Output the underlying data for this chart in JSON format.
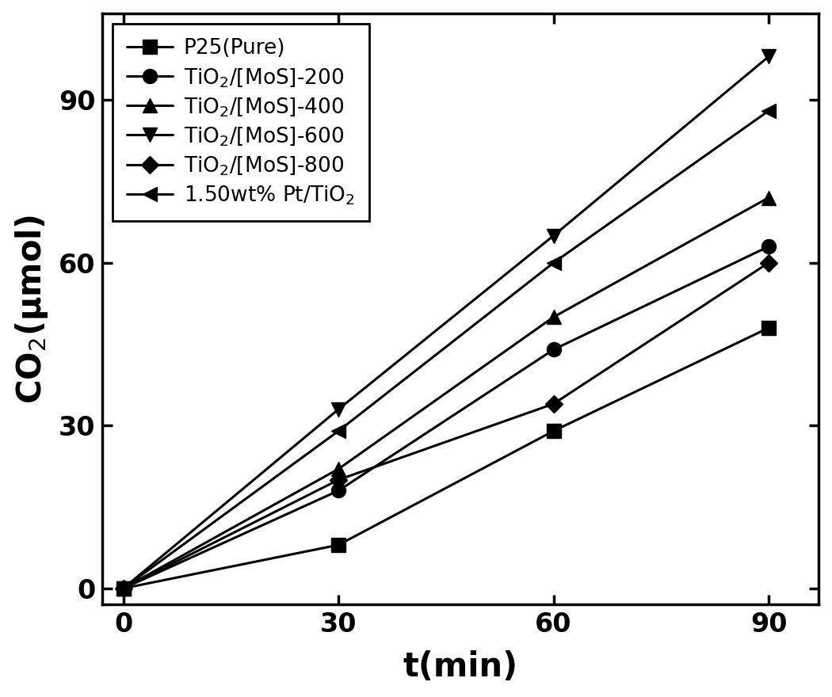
{
  "x": [
    0,
    30,
    60,
    90
  ],
  "series": [
    {
      "label": "P25(Pure)",
      "y": [
        0,
        8,
        29,
        48
      ],
      "marker": "s",
      "markersize": 13
    },
    {
      "label": "TiO$_2$/[MoS]-200",
      "y": [
        0,
        18,
        44,
        63
      ],
      "marker": "o",
      "markersize": 13
    },
    {
      "label": "TiO$_2$/[MoS]-400",
      "y": [
        0,
        22,
        50,
        72
      ],
      "marker": "^",
      "markersize": 13
    },
    {
      "label": "TiO$_2$/[MoS]-600",
      "y": [
        0,
        33,
        65,
        98
      ],
      "marker": "v",
      "markersize": 13
    },
    {
      "label": "TiO$_2$/[MoS]-800",
      "y": [
        0,
        20,
        34,
        60
      ],
      "marker": "D",
      "markersize": 11
    },
    {
      "label": "1.50wt% Pt/TiO$_2$",
      "y": [
        0,
        29,
        60,
        88
      ],
      "marker": "<",
      "markersize": 13
    }
  ],
  "xlabel": "t(min)",
  "ylabel": "CO$_2$(μmol)",
  "xlim": [
    -3,
    97
  ],
  "ylim": [
    -3,
    106
  ],
  "xticks": [
    0,
    30,
    60,
    90
  ],
  "yticks": [
    0,
    30,
    60,
    90
  ],
  "line_color": "#000000",
  "line_width": 2.2,
  "background_color": "#ffffff",
  "tick_fontsize": 24,
  "label_fontsize": 30,
  "legend_fontsize": 19
}
